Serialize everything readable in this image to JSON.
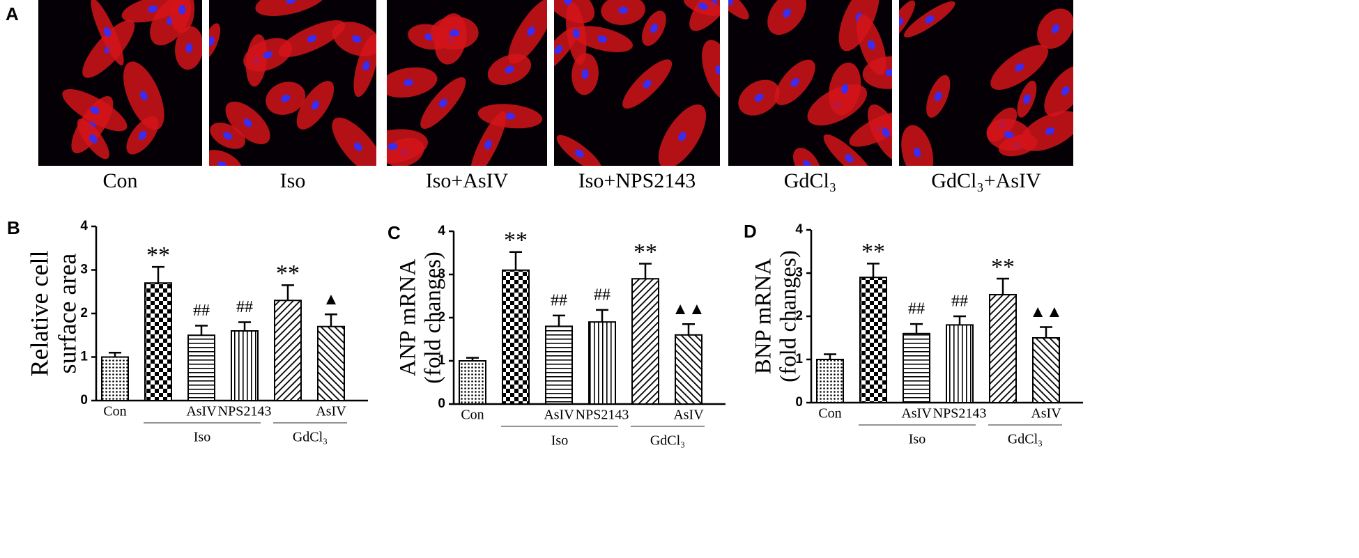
{
  "figure": {
    "panel": "A",
    "conditions": [
      "Con",
      "Iso",
      "Iso+AsIV",
      "Iso+NPS2143",
      "GdCl₃",
      "GdCl₃+AsIV"
    ]
  },
  "chart_data": [
    {
      "type": "bar",
      "panel": "B",
      "ylabel": [
        "Relative cell",
        "surface area"
      ],
      "categories": [
        "Con",
        null,
        "AsIV",
        "NPS2143",
        null,
        "AsIV"
      ],
      "groups": [
        null,
        "Iso",
        "Iso",
        "Iso",
        "GdCl₃",
        "GdCl₃"
      ],
      "values": [
        1.0,
        2.7,
        1.5,
        1.6,
        2.3,
        1.7
      ],
      "errors": [
        0.1,
        0.37,
        0.22,
        0.2,
        0.35,
        0.28
      ],
      "annotations": [
        null,
        "**",
        "##",
        "##",
        "**",
        "▲"
      ],
      "ylim": [
        0,
        4
      ],
      "yticks": [
        0,
        1,
        2,
        3,
        4
      ]
    },
    {
      "type": "bar",
      "panel": "C",
      "ylabel": [
        "ANP mRNA",
        "(fold changes)"
      ],
      "categories": [
        "Con",
        null,
        "AsIV",
        "NPS2143",
        null,
        "AsIV"
      ],
      "groups": [
        null,
        "Iso",
        "Iso",
        "Iso",
        "GdCl₃",
        "GdCl₃"
      ],
      "values": [
        1.0,
        3.1,
        1.8,
        1.9,
        2.9,
        1.6
      ],
      "errors": [
        0.07,
        0.42,
        0.25,
        0.28,
        0.35,
        0.25
      ],
      "annotations": [
        null,
        "**",
        "##",
        "##",
        "**",
        "▲▲"
      ],
      "ylim": [
        0,
        4
      ],
      "yticks": [
        0,
        1,
        2,
        3,
        4
      ]
    },
    {
      "type": "bar",
      "panel": "D",
      "ylabel": [
        "BNP mRNA",
        "(fold changes)"
      ],
      "categories": [
        "Con",
        null,
        "AsIV",
        "NPS2143",
        null,
        "AsIV"
      ],
      "groups": [
        null,
        "Iso",
        "Iso",
        "Iso",
        "GdCl₃",
        "GdCl₃"
      ],
      "values": [
        1.0,
        2.9,
        1.6,
        1.8,
        2.5,
        1.5
      ],
      "errors": [
        0.12,
        0.32,
        0.22,
        0.2,
        0.37,
        0.25
      ],
      "annotations": [
        null,
        "**",
        "##",
        "##",
        "**",
        "▲▲"
      ],
      "ylim": [
        0,
        4
      ],
      "yticks": [
        0,
        1,
        2,
        3,
        4
      ]
    }
  ]
}
